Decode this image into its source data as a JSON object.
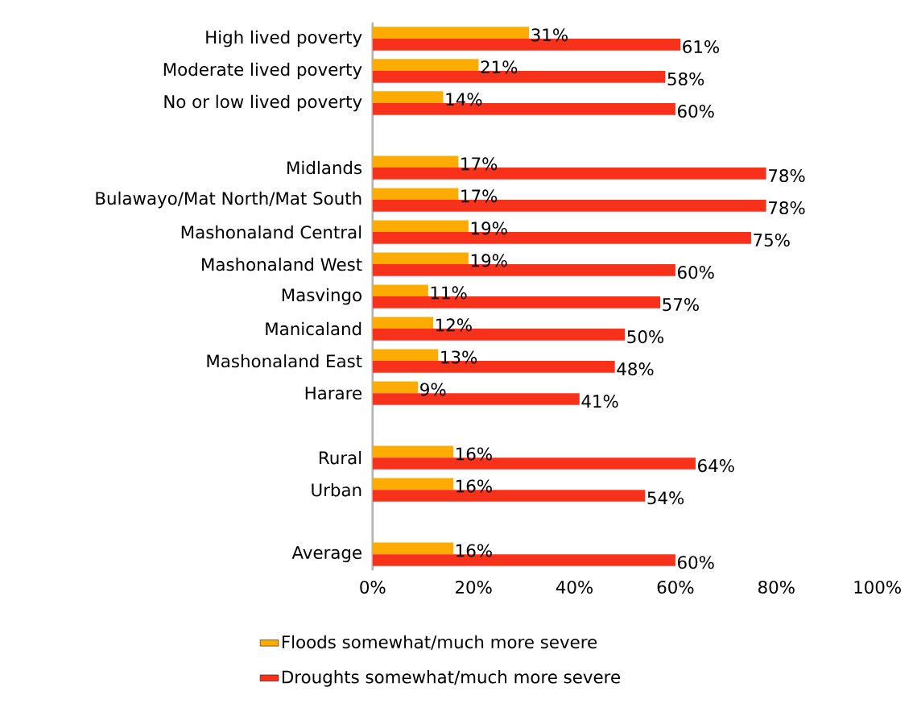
{
  "chart_data": {
    "type": "bar",
    "orientation": "horizontal",
    "categories": [
      "High lived poverty",
      "Moderate lived poverty",
      "No or low lived poverty",
      null,
      "Midlands",
      "Bulawayo/Mat North/Mat South",
      "Mashonaland Central",
      "Mashonaland West",
      "Masvingo",
      "Manicaland",
      "Mashonaland East",
      "Harare",
      null,
      "Rural",
      "Urban",
      null,
      "Average"
    ],
    "series": [
      {
        "name": "Floods somewhat/much more severe",
        "color": "#ffab00",
        "values": [
          31,
          21,
          14,
          null,
          17,
          17,
          19,
          19,
          11,
          12,
          13,
          9,
          null,
          16,
          16,
          null,
          16
        ],
        "value_labels": [
          "31%",
          "21%",
          "14%",
          null,
          "17%",
          "17%",
          "19%",
          "19%",
          "11%",
          "12%",
          "13%",
          "9%",
          null,
          "16%",
          "16%",
          null,
          "16%"
        ]
      },
      {
        "name": "Droughts somewhat/much more severe",
        "color": "#f8311b",
        "values": [
          61,
          58,
          60,
          null,
          78,
          78,
          75,
          60,
          57,
          50,
          48,
          41,
          null,
          64,
          54,
          null,
          60
        ],
        "value_labels": [
          "61%",
          "58%",
          "60%",
          null,
          "78%",
          "78%",
          "75%",
          "60%",
          "57%",
          "50%",
          "48%",
          "41%",
          null,
          "64%",
          "54%",
          null,
          "60%"
        ]
      }
    ],
    "xlim": [
      0,
      100
    ],
    "xticks": [
      {
        "value": 0,
        "label": "0%"
      },
      {
        "value": 20,
        "label": "20%"
      },
      {
        "value": 40,
        "label": "40%"
      },
      {
        "value": 60,
        "label": "60%"
      },
      {
        "value": 80,
        "label": "80%"
      },
      {
        "value": 100,
        "label": "100%"
      }
    ],
    "legend": "bottom"
  }
}
